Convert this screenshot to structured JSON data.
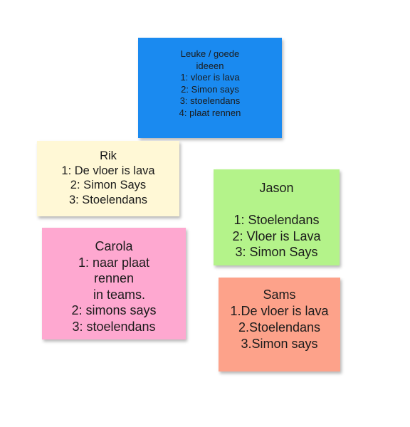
{
  "notes": [
    {
      "color": "#1a8af0",
      "lines": [
        "Leuke / goede",
        "ideeen",
        "1: vloer is lava",
        "2: Simon says",
        "3: stoelendans",
        "4: plaat rennen"
      ]
    },
    {
      "color": "#fff8d6",
      "lines": [
        "Rik",
        "1: De vloer is lava",
        "2: Simon Says",
        "3: Stoelendans"
      ]
    },
    {
      "color": "#b4f38a",
      "lines": [
        "Jason",
        "",
        "1: Stoelendans",
        "2: Vloer is Lava",
        "3: Simon Says"
      ]
    },
    {
      "color": "#fea8d0",
      "lines": [
        "Carola",
        "1: naar plaat",
        "rennen",
        "   in teams.",
        "2: simons says",
        "3: stoelendans"
      ]
    },
    {
      "color": "#fda28a",
      "lines": [
        "Sams",
        "1.De vloer is lava",
        "2.Stoelendans",
        "3.Simon says"
      ]
    }
  ]
}
